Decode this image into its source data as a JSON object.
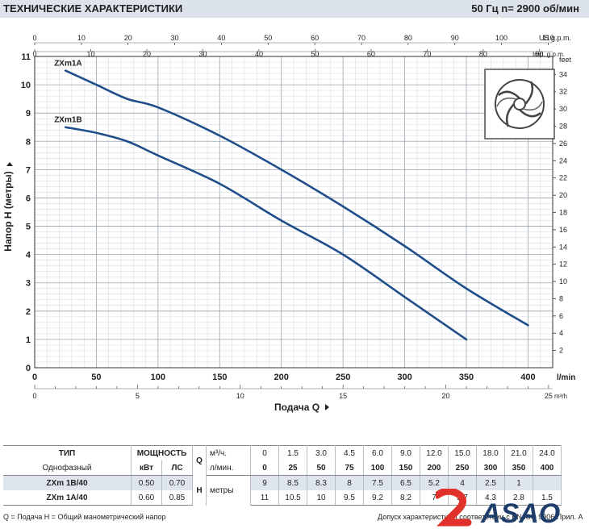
{
  "header": {
    "title": "ТЕХНИЧЕСКИЕ ХАРАКТЕРИСТИКИ",
    "rpm": "50 Гц   n= 2900  об/мин"
  },
  "chart_data": {
    "type": "line",
    "ylabel": "Напор  H  (метры)",
    "xlabel": "Подача  Q",
    "xlim": [
      0,
      420
    ],
    "ylim": [
      0,
      11
    ],
    "y_ticks": [
      0,
      1,
      2,
      3,
      4,
      5,
      6,
      7,
      8,
      9,
      10,
      11
    ],
    "x_ticks": [
      0,
      50,
      100,
      150,
      200,
      250,
      300,
      350,
      400
    ],
    "x_unit": "l/min",
    "feet_ticks": [
      "2",
      "4",
      "6",
      "8",
      "10",
      "12",
      "14",
      "16",
      "18",
      "20",
      "22",
      "24",
      "26",
      "28",
      "30",
      "32",
      "34"
    ],
    "feet_unit": "feet",
    "us_gpm_ticks": [
      "0",
      "10",
      "20",
      "30",
      "40",
      "50",
      "60",
      "70",
      "80",
      "90",
      "100",
      "110"
    ],
    "us_gpm_unit": "US g.p.m.",
    "imp_gpm_ticks": [
      "0",
      "10",
      "20",
      "30",
      "40",
      "50",
      "60",
      "70",
      "80",
      "90"
    ],
    "imp_gpm_unit": "Imp. g.p.m.",
    "m3h_ticks": [
      "0",
      "5",
      "10",
      "15",
      "20",
      "25"
    ],
    "m3h_unit": "m³/h",
    "series": [
      {
        "name": "ZXm1A",
        "x": [
          25,
          50,
          75,
          100,
          150,
          200,
          250,
          300,
          350,
          400
        ],
        "y": [
          10.5,
          10,
          9.5,
          9.2,
          8.2,
          7.0,
          5.7,
          4.3,
          2.8,
          1.5
        ]
      },
      {
        "name": "ZXm1B",
        "x": [
          25,
          50,
          75,
          100,
          150,
          200,
          250,
          300,
          350
        ],
        "y": [
          8.5,
          8.3,
          8.0,
          7.5,
          6.5,
          5.2,
          4.0,
          2.5,
          1.0
        ]
      }
    ],
    "color": "#1f4e8a"
  },
  "table": {
    "tip": "ТИП",
    "phase": "Однофазный",
    "power": "МОЩНОСТЬ",
    "kw": "кВт",
    "hp": "ЛС",
    "q": "Q",
    "q_m3h": "м³/ч.",
    "q_lmin": "л/мин.",
    "h": "H",
    "h_unit": "метры",
    "m3h_values": [
      "0",
      "1.5",
      "3.0",
      "4.5",
      "6.0",
      "9.0",
      "12.0",
      "15.0",
      "18.0",
      "21.0",
      "24.0"
    ],
    "lmin_values": [
      "0",
      "25",
      "50",
      "75",
      "100",
      "150",
      "200",
      "250",
      "300",
      "350",
      "400"
    ],
    "models": [
      {
        "name": "ZXm 1B/40",
        "kw": "0.50",
        "hp": "0.70",
        "h": [
          "9",
          "8.5",
          "8.3",
          "8",
          "7.5",
          "6.5",
          "5.2",
          "4",
          "2.5",
          "1",
          ""
        ]
      },
      {
        "name": "ZXm 1A/40",
        "kw": "0.60",
        "hp": "0.85",
        "h": [
          "11",
          "10.5",
          "10",
          "9.5",
          "9.2",
          "8.2",
          "7",
          "5.7",
          "4.3",
          "2.8",
          "1.5"
        ]
      }
    ]
  },
  "footer": {
    "left": "Q = Подача   H = Общий манометрический напор",
    "right": "Допуск характеристик в соответствии с EN ISO 9906 Прил. А"
  },
  "logo": {
    "text": "ASAO"
  }
}
